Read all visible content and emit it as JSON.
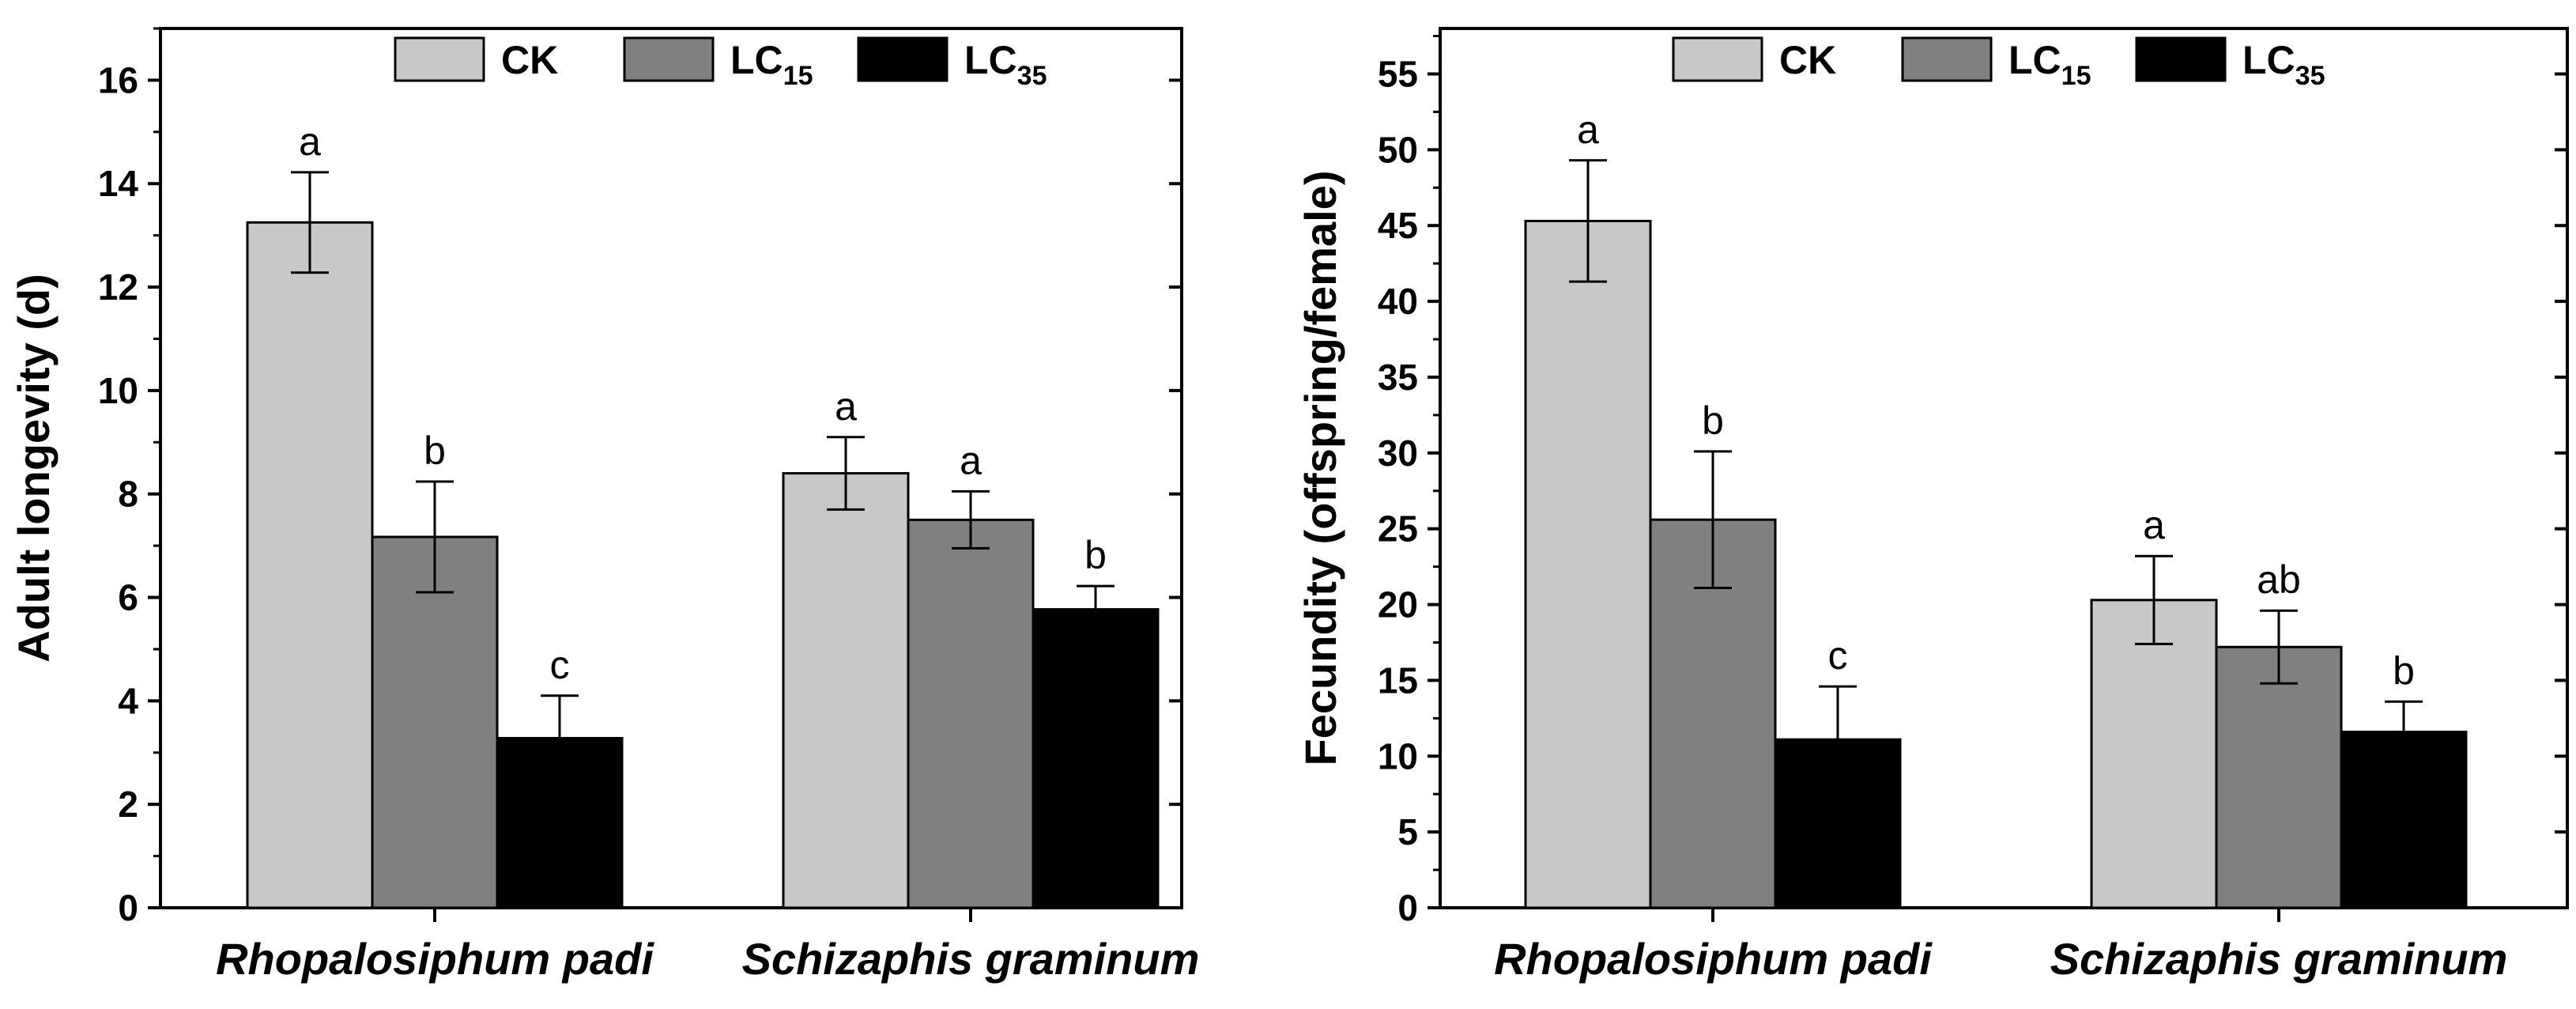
{
  "chart_data": [
    {
      "type": "bar",
      "title": "",
      "xlabel": "",
      "ylabel": "Adult longevity (d)",
      "ylim": [
        0,
        17
      ],
      "yticks": [
        0,
        2,
        4,
        6,
        8,
        10,
        12,
        14,
        16
      ],
      "grid": false,
      "legend_position": "top",
      "categories": [
        "Rhopalosiphum padi",
        "Schizaphis graminum"
      ],
      "series": [
        {
          "name": "CK",
          "label_main": "CK",
          "label_sub": "",
          "color": "#c8c8c8",
          "values": [
            13.25,
            8.4
          ],
          "errors": [
            0.97,
            0.7
          ],
          "letters": [
            "a",
            "a"
          ]
        },
        {
          "name": "LC15",
          "label_main": "LC",
          "label_sub": "15",
          "color": "#808080",
          "values": [
            7.17,
            7.5
          ],
          "errors": [
            1.07,
            0.55
          ],
          "letters": [
            "b",
            "a"
          ]
        },
        {
          "name": "LC35",
          "label_main": "LC",
          "label_sub": "35",
          "color": "#000000",
          "values": [
            3.28,
            5.77
          ],
          "errors": [
            0.82,
            0.45
          ],
          "letters": [
            "c",
            "b"
          ]
        }
      ]
    },
    {
      "type": "bar",
      "title": "",
      "xlabel": "",
      "ylabel": "Fecundity (offspring/female)",
      "ylim": [
        0,
        58
      ],
      "yticks": [
        0,
        5,
        10,
        15,
        20,
        25,
        30,
        35,
        40,
        45,
        50,
        55
      ],
      "grid": false,
      "legend_position": "top",
      "categories": [
        "Rhopalosiphum padi",
        "Schizaphis graminum"
      ],
      "series": [
        {
          "name": "CK",
          "label_main": "CK",
          "label_sub": "",
          "color": "#c8c8c8",
          "values": [
            45.3,
            20.3
          ],
          "errors": [
            4.0,
            2.9
          ],
          "letters": [
            "a",
            "a"
          ]
        },
        {
          "name": "LC15",
          "label_main": "LC",
          "label_sub": "15",
          "color": "#808080",
          "values": [
            25.6,
            17.2
          ],
          "errors": [
            4.5,
            2.4
          ],
          "letters": [
            "b",
            "ab"
          ]
        },
        {
          "name": "LC35",
          "label_main": "LC",
          "label_sub": "35",
          "color": "#000000",
          "values": [
            11.1,
            11.6
          ],
          "errors": [
            3.5,
            2.0
          ],
          "letters": [
            "c",
            "b"
          ]
        }
      ]
    }
  ]
}
